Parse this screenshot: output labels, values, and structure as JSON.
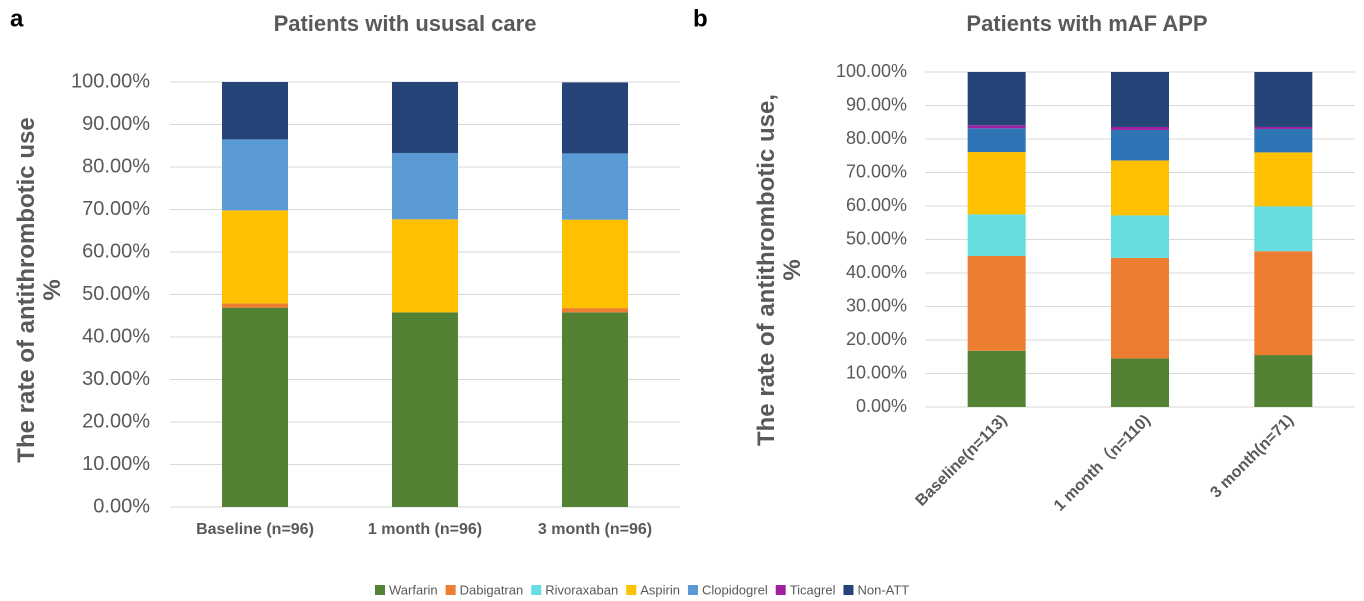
{
  "chart_data": [
    {
      "type": "stacked_bar",
      "panel_label": "a",
      "title": "Patients with ususal care",
      "ylabel_lines": [
        "The rate of antithrombotic use",
        "%"
      ],
      "categories": [
        "Baseline (n=96)",
        "1 month (n=96)",
        "3 month (n=96)"
      ],
      "series": [
        {
          "name": "Warfarin",
          "color": "#548235",
          "values": [
            46.9,
            45.8,
            45.8
          ]
        },
        {
          "name": "Dabigatran",
          "color": "#ed7d31",
          "values": [
            1.0,
            0,
            1.0
          ]
        },
        {
          "name": "Rivoraxaban",
          "color": "#66dde0",
          "values": [
            0,
            0,
            0
          ]
        },
        {
          "name": "Aspirin",
          "color": "#ffc000",
          "values": [
            21.9,
            21.9,
            20.8
          ]
        },
        {
          "name": "Clopidogrel",
          "color": "#5b9bd5",
          "values": [
            16.7,
            15.6,
            15.6
          ]
        },
        {
          "name": "Ticagrel",
          "color": "#a020a0",
          "values": [
            0,
            0,
            0
          ]
        },
        {
          "name": "Non-ATT",
          "color": "#264478",
          "values": [
            13.5,
            16.7,
            16.7
          ]
        }
      ],
      "ylim": [
        0,
        100
      ],
      "yticks": [
        {
          "value": 0,
          "label": "0.00%"
        },
        {
          "value": 10,
          "label": "10.00%"
        },
        {
          "value": 20,
          "label": "20.00%"
        },
        {
          "value": 30,
          "label": "30.00%"
        },
        {
          "value": 40,
          "label": "40.00%"
        },
        {
          "value": 50,
          "label": "50.00%"
        },
        {
          "value": 60,
          "label": "60.00%"
        },
        {
          "value": 70,
          "label": "70.00%"
        },
        {
          "value": 80,
          "label": "80.00%"
        },
        {
          "value": 90,
          "label": "90.00%"
        },
        {
          "value": 100,
          "label": "100.00%"
        }
      ],
      "grid": true
    },
    {
      "type": "stacked_bar",
      "panel_label": "b",
      "title": "Patients with mAF APP",
      "ylabel_lines": [
        "The rate of antithrombotic use,",
        "%"
      ],
      "categories": [
        "Baseline(n=113)",
        "1 month（n=110)",
        "3 month(n=71)"
      ],
      "series": [
        {
          "name": "Warfarin",
          "color": "#548235",
          "values": [
            16.8,
            14.5,
            15.5
          ]
        },
        {
          "name": "Dabigatran",
          "color": "#ed7d31",
          "values": [
            28.3,
            30.0,
            31.0
          ]
        },
        {
          "name": "Rivoraxaban",
          "color": "#66dde0",
          "values": [
            12.4,
            12.7,
            13.4
          ]
        },
        {
          "name": "Aspirin",
          "color": "#ffc000",
          "values": [
            18.6,
            16.4,
            16.1
          ]
        },
        {
          "name": "Clopidogrel",
          "color": "#2e75b6",
          "values": [
            7.1,
            9.1,
            7.0
          ]
        },
        {
          "name": "Ticagrel",
          "color": "#a020a0",
          "values": [
            0.9,
            0.9,
            0.6
          ]
        },
        {
          "name": "Non-ATT",
          "color": "#264478",
          "values": [
            15.9,
            16.4,
            16.4
          ]
        }
      ],
      "ylim": [
        0,
        100
      ],
      "yticks": [
        {
          "value": 0,
          "label": "0.00%"
        },
        {
          "value": 10,
          "label": "10.00%"
        },
        {
          "value": 20,
          "label": "20.00%"
        },
        {
          "value": 30,
          "label": "30.00%"
        },
        {
          "value": 40,
          "label": "40.00%"
        },
        {
          "value": 50,
          "label": "50.00%"
        },
        {
          "value": 60,
          "label": "60.00%"
        },
        {
          "value": 70,
          "label": "70.00%"
        },
        {
          "value": 80,
          "label": "80.00%"
        },
        {
          "value": 90,
          "label": "90.00%"
        },
        {
          "value": 100,
          "label": "100.00%"
        }
      ],
      "grid": true
    }
  ]
}
